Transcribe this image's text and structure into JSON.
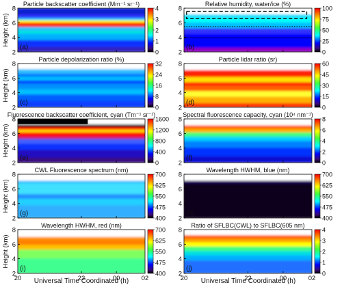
{
  "figure": {
    "x_axis_label": "Universal Time Coordinated (h)",
    "y_axis_label": "Height (km)",
    "x_tick_labels": [
      "20",
      "22",
      "00",
      "02"
    ]
  },
  "chart_data": [
    {
      "type": "heatmap",
      "panel_letter": "(a)",
      "title": "Particle backscatter coefficient (Mm⁻¹ sr⁻¹)",
      "ylabel": "Height (km)",
      "ylim": [
        2,
        8
      ],
      "y_ticks": [
        2,
        4,
        6,
        8
      ],
      "colorbar": {
        "scale": "jet",
        "range": [
          0,
          4
        ],
        "ticks": [
          "0",
          "1",
          "2",
          "3",
          "4"
        ]
      },
      "layers": [
        {
          "height_km": [
            5.5,
            6.3
          ],
          "approx_value": 3.5
        },
        {
          "height_km": [
            4.3,
            5.2
          ],
          "approx_value": 1.5
        },
        {
          "height_km": [
            2,
            3.5
          ],
          "approx_value": 0.5
        }
      ]
    },
    {
      "type": "heatmap",
      "panel_letter": "(b)",
      "title": "Relative humidity, water/ice (%)",
      "ylim": [
        2,
        8
      ],
      "y_ticks": [
        2,
        4,
        6,
        8
      ],
      "colorbar": {
        "scale": "jet",
        "range": [
          0,
          100
        ],
        "ticks": [
          "0",
          "25",
          "50",
          "75",
          "100"
        ]
      },
      "annotations": [
        "dashed-box",
        "dotted-line"
      ]
    },
    {
      "type": "heatmap",
      "panel_letter": "(c)",
      "title": "Particle depolarization ratio (%)",
      "ylabel": "Height (km)",
      "ylim": [
        2,
        8
      ],
      "y_ticks": [
        2,
        4,
        6,
        8
      ],
      "colorbar": {
        "scale": "jet",
        "range": [
          0,
          32
        ],
        "ticks": [
          "0",
          "8",
          "16",
          "24",
          "32"
        ]
      }
    },
    {
      "type": "heatmap",
      "panel_letter": "(d)",
      "title": "Particle lidar ratio (sr)",
      "ylim": [
        2,
        8
      ],
      "y_ticks": [
        2,
        4,
        6,
        8
      ],
      "colorbar": {
        "scale": "jet",
        "range": [
          0,
          60
        ],
        "ticks": [
          "0",
          "15",
          "30",
          "45",
          "60"
        ]
      }
    },
    {
      "type": "heatmap",
      "panel_letter": "(e)",
      "title": "Fluorescence backscatter coefficient, cyan (Tm⁻¹ sr⁻¹)",
      "ylabel": "Height (km)",
      "ylim": [
        2,
        8
      ],
      "y_ticks": [
        2,
        4,
        6,
        8
      ],
      "colorbar": {
        "scale": "jet",
        "range": [
          0,
          1600
        ],
        "ticks": [
          "0",
          "400",
          "800",
          "1200",
          "1600"
        ]
      }
    },
    {
      "type": "heatmap",
      "panel_letter": "(f)",
      "title": "Spectral fluorescence capacity, cyan (10⁴ nm⁻¹)",
      "ylim": [
        2,
        8
      ],
      "y_ticks": [
        2,
        4,
        6,
        8
      ],
      "colorbar": {
        "scale": "jet",
        "range": [
          0,
          8
        ],
        "ticks": [
          "0",
          "2",
          "4",
          "6",
          "8"
        ]
      }
    },
    {
      "type": "heatmap",
      "panel_letter": "(g)",
      "title": "CWL Fluorescence spectrum (nm)",
      "ylabel": "Height (km)",
      "ylim": [
        2,
        8
      ],
      "y_ticks": [
        2,
        4,
        6,
        8
      ],
      "colorbar": {
        "scale": "jet",
        "range": [
          400,
          700
        ],
        "ticks": [
          "400",
          "475",
          "550",
          "625",
          "700"
        ]
      }
    },
    {
      "type": "heatmap",
      "panel_letter": "(h)",
      "title": "Wavelength HWHM, blue (nm)",
      "ylim": [
        2,
        8
      ],
      "y_ticks": [
        2,
        4,
        6,
        8
      ],
      "colorbar": {
        "scale": "jet",
        "range": [
          400,
          700
        ],
        "ticks": [
          "400",
          "475",
          "550",
          "625",
          "700"
        ]
      }
    },
    {
      "type": "heatmap",
      "panel_letter": "(i)",
      "title": "Wavelength HWHM, red (nm)",
      "ylabel": "Height (km)",
      "ylim": [
        2,
        8
      ],
      "y_ticks": [
        2,
        4,
        6,
        8
      ],
      "colorbar": {
        "scale": "jet",
        "range": [
          400,
          700
        ],
        "ticks": [
          "400",
          "475",
          "550",
          "625",
          "700"
        ]
      }
    },
    {
      "type": "heatmap",
      "panel_letter": "(j)",
      "title": "Ratio of SFLBC(CWL) to SFLBC(605 nm)",
      "ylim": [
        2,
        8
      ],
      "y_ticks": [
        2,
        4,
        6,
        8
      ],
      "colorbar": {
        "scale": "jet",
        "range": [
          0,
          4
        ],
        "ticks": [
          "0",
          "1",
          "2",
          "3",
          "4"
        ]
      }
    }
  ]
}
